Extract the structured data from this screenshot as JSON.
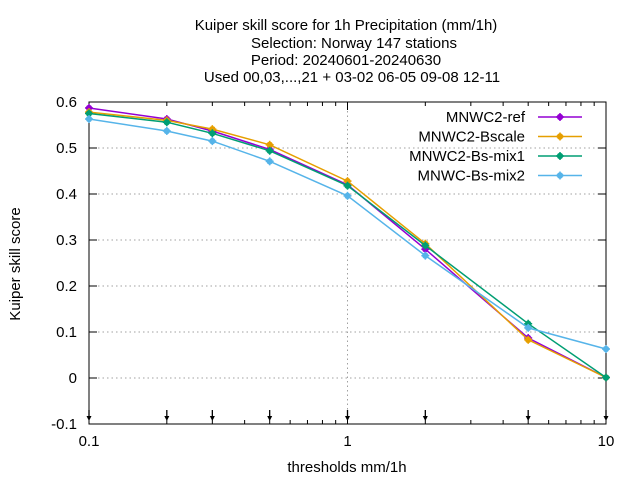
{
  "chart_data": {
    "type": "line",
    "title_lines": [
      "Kuiper skill score  for 1h Precipitation (mm/1h)",
      "Selection: Norway    147 stations",
      "Period: 20240601-20240630",
      "Used 00,03,...,21 + 03-02 06-05 09-08 12-11"
    ],
    "xlabel": "thresholds mm/1h",
    "ylabel": "Kuiper skill score",
    "x_scale": "log",
    "xlim": [
      0.1,
      10
    ],
    "ylim": [
      -0.1,
      0.6
    ],
    "grid": true,
    "legend_position": "top-right",
    "x_ticks": [
      {
        "value": 0.1,
        "label": "0.1"
      },
      {
        "value": 1,
        "label": "1"
      },
      {
        "value": 10,
        "label": "10"
      }
    ],
    "y_ticks": [
      {
        "value": -0.1,
        "label": "-0.1"
      },
      {
        "value": 0,
        "label": "0"
      },
      {
        "value": 0.1,
        "label": "0.1"
      },
      {
        "value": 0.2,
        "label": "0.2"
      },
      {
        "value": 0.3,
        "label": "0.3"
      },
      {
        "value": 0.4,
        "label": "0.4"
      },
      {
        "value": 0.5,
        "label": "0.5"
      },
      {
        "value": 0.6,
        "label": "0.6"
      }
    ],
    "threshold_markers": [
      0.1,
      0.2,
      0.3,
      0.5,
      1,
      2,
      5,
      10
    ],
    "x": [
      0.1,
      0.2,
      0.3,
      0.5,
      1,
      2,
      5,
      10
    ],
    "series": [
      {
        "name": "MNWC2-ref",
        "color": "#9400d3",
        "values": [
          0.587,
          0.563,
          0.537,
          0.497,
          0.42,
          0.28,
          0.087,
          0.001
        ]
      },
      {
        "name": "MNWC2-Bscale",
        "color": "#e69f00",
        "values": [
          0.578,
          0.56,
          0.541,
          0.507,
          0.428,
          0.292,
          0.083,
          0.001
        ]
      },
      {
        "name": "MNWC2-Bs-mix1",
        "color": "#009e73",
        "values": [
          0.575,
          0.556,
          0.532,
          0.494,
          0.418,
          0.288,
          0.118,
          0.001
        ]
      },
      {
        "name": "MNWC-Bs-mix2",
        "color": "#56b4e9",
        "values": [
          0.563,
          0.537,
          0.515,
          0.471,
          0.396,
          0.266,
          0.109,
          0.063
        ]
      }
    ]
  }
}
